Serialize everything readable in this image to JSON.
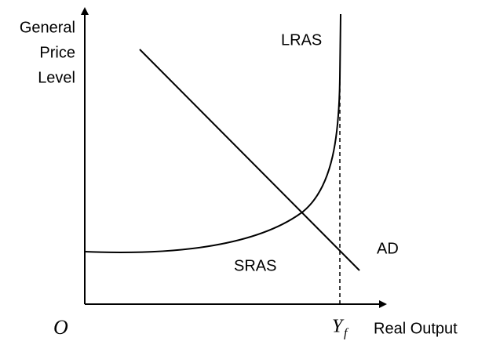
{
  "diagram": {
    "y_axis_label": [
      "General",
      "Price",
      "Level"
    ],
    "x_axis_label": "Real Output",
    "origin_label": "O",
    "full_employment_label": {
      "text": "Y",
      "subscript": "f"
    },
    "curves": {
      "lras": "LRAS",
      "sras": "SRAS",
      "ad": "AD"
    }
  }
}
